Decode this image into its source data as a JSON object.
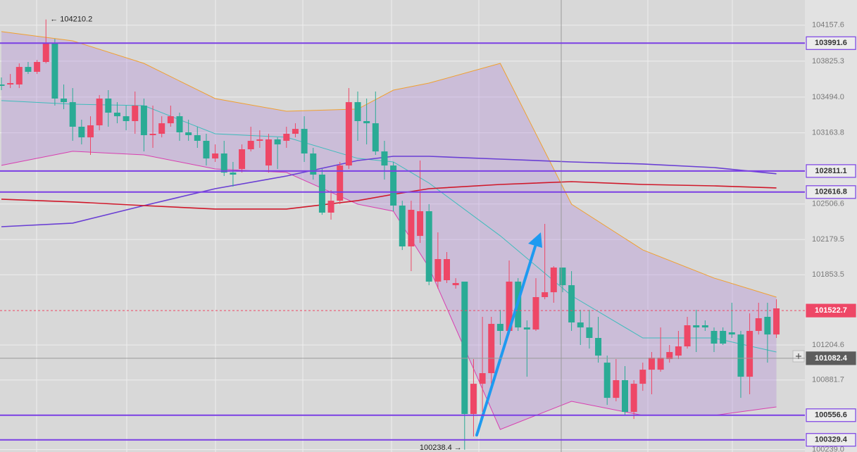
{
  "chart_data": {
    "type": "candlestick",
    "ylim": [
      100217,
      104390
    ],
    "yticks": [
      104157.6,
      103825.3,
      {
        "value": 103494,
        "label": "103494.0"
      },
      103163.8,
      102506.6,
      102179.5,
      101853.5,
      101204.6,
      100881.7,
      {
        "value": 100239,
        "label": "100239.0"
      }
    ],
    "grid": true,
    "up_color": "#ee4766",
    "down_color": "#2aab95",
    "open": [
      103610,
      103610,
      103610,
      103772,
      103727,
      103818,
      103987,
      103480,
      103447,
      103220,
      103122,
      103233,
      103480,
      103350,
      103317,
      103272,
      103415,
      103142,
      103155,
      103252,
      103317,
      103168,
      103142,
      103090,
      102927,
      102973,
      102797,
      102830,
      103012,
      103090,
      102862,
      103103,
      103090,
      103155,
      103200,
      102973,
      102778,
      102427,
      102537,
      102862,
      103447,
      103272,
      103252,
      102992,
      102862,
      102492,
      102115,
      102212,
      102440,
      101790,
      101803,
      101757,
      101790,
      100568,
      100847,
      100945,
      101400,
      101335,
      101790,
      101367,
      101348,
      101647,
      101692,
      101920,
      101757,
      101413,
      101367,
      101270,
      101042,
      100717,
      100880,
      100587,
      100847,
      100977,
      100977,
      101075,
      101107,
      101192,
      101387,
      101387,
      101335,
      101335,
      101322,
      101302,
      100912,
      101335,
      101465,
      101302
    ],
    "high": [
      103675,
      103707,
      103805,
      103818,
      103837,
      104210.2,
      104032,
      103610,
      103577,
      103285,
      103317,
      103512,
      103558,
      103447,
      103415,
      103545,
      103480,
      103415,
      103317,
      103415,
      103350,
      103285,
      103220,
      103155,
      103057,
      103090,
      102895,
      103057,
      103220,
      103187,
      103155,
      103122,
      103220,
      103252,
      103317,
      103025,
      102830,
      102635,
      102895,
      103577,
      103545,
      103480,
      103545,
      103090,
      102895,
      102537,
      102537,
      102908,
      102505,
      102245,
      102063,
      101822,
      101790,
      101075,
      101465,
      101465,
      101530,
      101985,
      101822,
      101432,
      101822,
      102323,
      101933,
      101920,
      101887,
      101530,
      101530,
      101465,
      101107,
      101075,
      101010,
      100880,
      101042,
      101140,
      101367,
      101205,
      101335,
      101465,
      101530,
      101432,
      101367,
      101367,
      101595,
      101335,
      101497,
      101595,
      101595,
      101627
    ],
    "low": [
      103558,
      103577,
      103577,
      103707,
      103707,
      103805,
      103415,
      103382,
      103090,
      103057,
      102960,
      103187,
      103220,
      103252,
      103187,
      103155,
      102992,
      103025,
      103122,
      103220,
      103090,
      103090,
      103025,
      102862,
      102895,
      102765,
      102667,
      102797,
      102992,
      103025,
      102797,
      102830,
      103025,
      103122,
      102895,
      102732,
      102407,
      102362,
      102505,
      102830,
      103090,
      103057,
      102960,
      102732,
      102440,
      102082,
      101887,
      102147,
      101757,
      101725,
      101777,
      101725,
      100238.4,
      100360,
      100587,
      100847,
      101205,
      101302,
      101335,
      100912,
      101335,
      101627,
      101595,
      101692,
      101335,
      101205,
      101172,
      101042,
      100652,
      100685,
      100555,
      100522,
      100782,
      100750,
      100958,
      101042,
      101075,
      101172,
      101140,
      101335,
      101140,
      101205,
      101270,
      100717,
      100750,
      101302,
      101042,
      101270
    ],
    "close": [
      103597,
      103623,
      103772,
      103727,
      103818,
      103987,
      103480,
      103447,
      103220,
      103122,
      103233,
      103480,
      103350,
      103317,
      103272,
      103415,
      103142,
      103155,
      103252,
      103317,
      103168,
      103142,
      103090,
      102927,
      102973,
      102797,
      102778,
      103012,
      103090,
      103103,
      103103,
      103057,
      103155,
      103200,
      102973,
      102778,
      102427,
      102537,
      102862,
      103447,
      103272,
      103252,
      102992,
      102862,
      102492,
      102115,
      102453,
      102440,
      101790,
      101998,
      101998,
      101777,
      100568,
      100847,
      100945,
      101400,
      101335,
      101790,
      101367,
      101348,
      101647,
      101692,
      101920,
      101757,
      101413,
      101367,
      101270,
      101107,
      100717,
      100880,
      100587,
      100847,
      100977,
      101088,
      101088,
      101140,
      101192,
      101387,
      101367,
      101367,
      101218,
      101218,
      101302,
      100912,
      101335,
      101452,
      101302,
      101543
    ],
    "indicator_x": [
      0,
      8,
      16,
      24,
      32,
      40,
      44,
      48,
      56,
      64,
      72,
      80,
      87
    ],
    "bands": {
      "upper": [
        104098,
        104013,
        103805,
        103480,
        103363,
        103383,
        103558,
        103623,
        103805,
        102505,
        102083,
        101823,
        101647
      ],
      "middle": [
        103461,
        103428,
        103415,
        103155,
        103123,
        102928,
        102895,
        102700,
        102213,
        101660,
        101270,
        101270,
        101140
      ],
      "lower": [
        102863,
        102993,
        102960,
        102830,
        102798,
        102505,
        102440,
        101920,
        100425,
        100685,
        100555,
        100555,
        100633
      ],
      "fill": "rgba(170,120,215,0.28)",
      "upper_color": "#f0a030",
      "middle_color": "#3fbcbc",
      "lower_color": "#d83fb0"
    },
    "lines": [
      {
        "color": "#6a3fd4",
        "values": [
          102297,
          102330,
          102492,
          102648,
          102765,
          102908,
          102947,
          102947,
          102921,
          102895,
          102876,
          102843,
          102786
        ]
      },
      {
        "color": "#d0182a",
        "values": [
          102551,
          102526,
          102492,
          102460,
          102460,
          102538,
          102596,
          102648,
          102687,
          102713,
          102687,
          102674,
          102655
        ]
      }
    ],
    "levels": [
      {
        "value": 103991.6,
        "color": "#7b3fe4"
      },
      {
        "value": 102811.1,
        "color": "#7b3fe4"
      },
      {
        "value": 102616.8,
        "color": "#7b3fe4"
      },
      {
        "value": 100556.6,
        "color": "#7b3fe4"
      },
      {
        "value": 100329.4,
        "color": "#7b3fe4"
      }
    ],
    "last_price": {
      "value": 101522.7,
      "color": "#ee4766"
    },
    "crosshair": {
      "value": 101082.4,
      "color": "#5c5c5c"
    },
    "annotations": {
      "high": "← 104210.2",
      "low": "100238.4 →"
    }
  }
}
